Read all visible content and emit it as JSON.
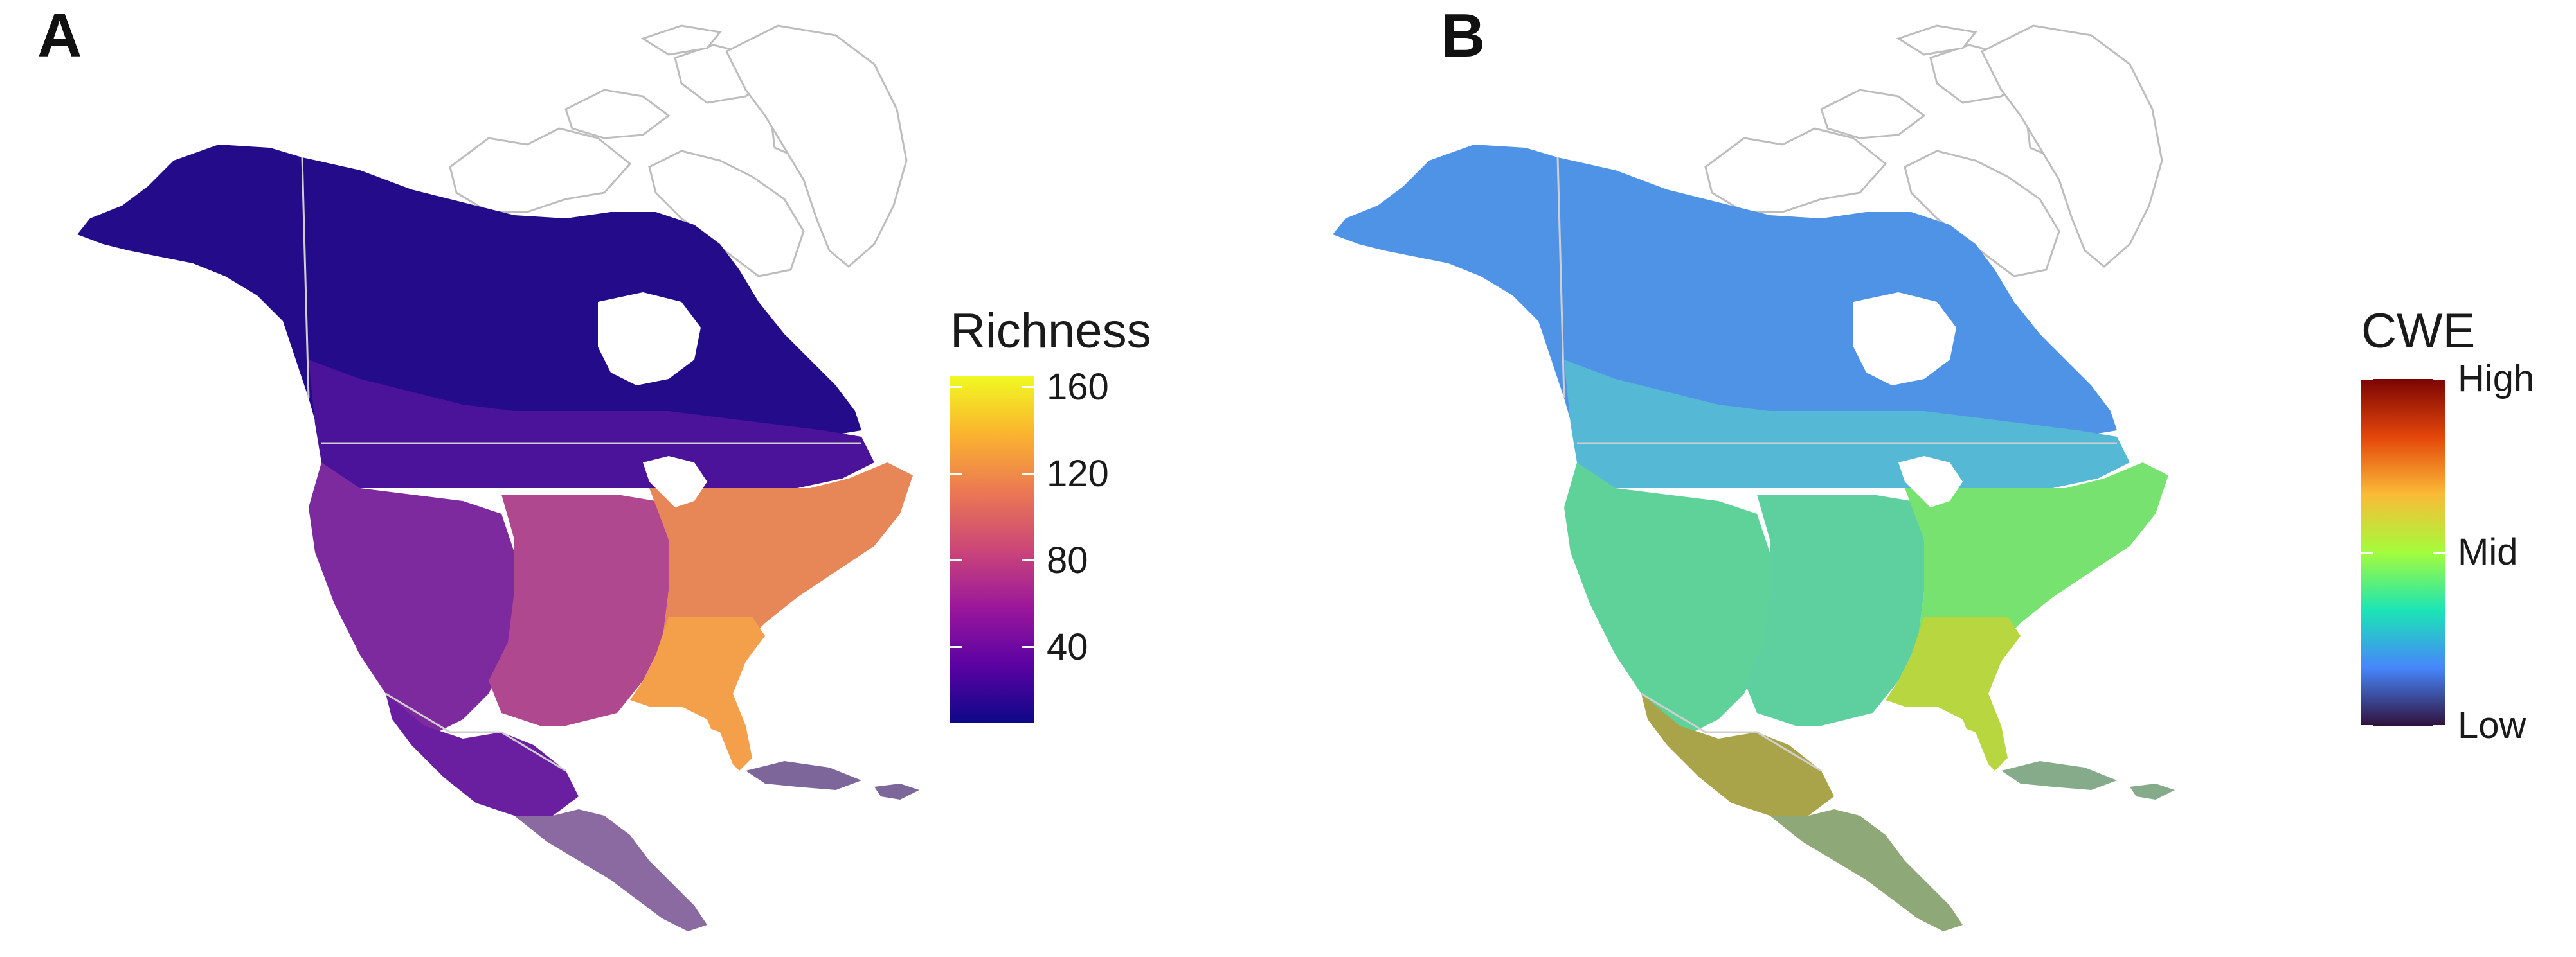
{
  "panels": [
    {
      "label": "A",
      "legend": {
        "title": "Richness",
        "ticks": [
          "160",
          "120",
          "80",
          "40"
        ],
        "tick_values": [
          160,
          120,
          80,
          40
        ],
        "range": [
          5,
          165
        ],
        "palette": [
          "#0d0887",
          "#5b02a3",
          "#9a179b",
          "#cb4678",
          "#eb7852",
          "#fbb32f",
          "#f0f921"
        ]
      },
      "land_colors": {
        "north": "#240b8a",
        "boreal": "#4a139a",
        "west": "#7c2a9e",
        "plains": "#b0488f",
        "east": "#e78757",
        "southeast": "#f4a04a",
        "mexico": "#6a1ea0",
        "central_america": "#8a6aa0",
        "caribbean": "#7d6699"
      }
    },
    {
      "label": "B",
      "legend": {
        "title": "CWE",
        "ticks": [
          "High",
          "Mid",
          "Low"
        ],
        "tick_values": [
          1,
          0.5,
          0
        ],
        "range": [
          0,
          1
        ],
        "palette": [
          "#30123b",
          "#4686fb",
          "#1be5b5",
          "#a4fc3c",
          "#fabb37",
          "#e4460a",
          "#7a0403"
        ]
      },
      "land_colors": {
        "north": "#4f93e6",
        "boreal": "#55b8d5",
        "west": "#5fd29a",
        "plains": "#5ed0a0",
        "east": "#78e270",
        "southeast": "#b7d640",
        "mexico": "#a9a44a",
        "central_america": "#8fa878",
        "caribbean": "#86ab8a"
      }
    }
  ]
}
